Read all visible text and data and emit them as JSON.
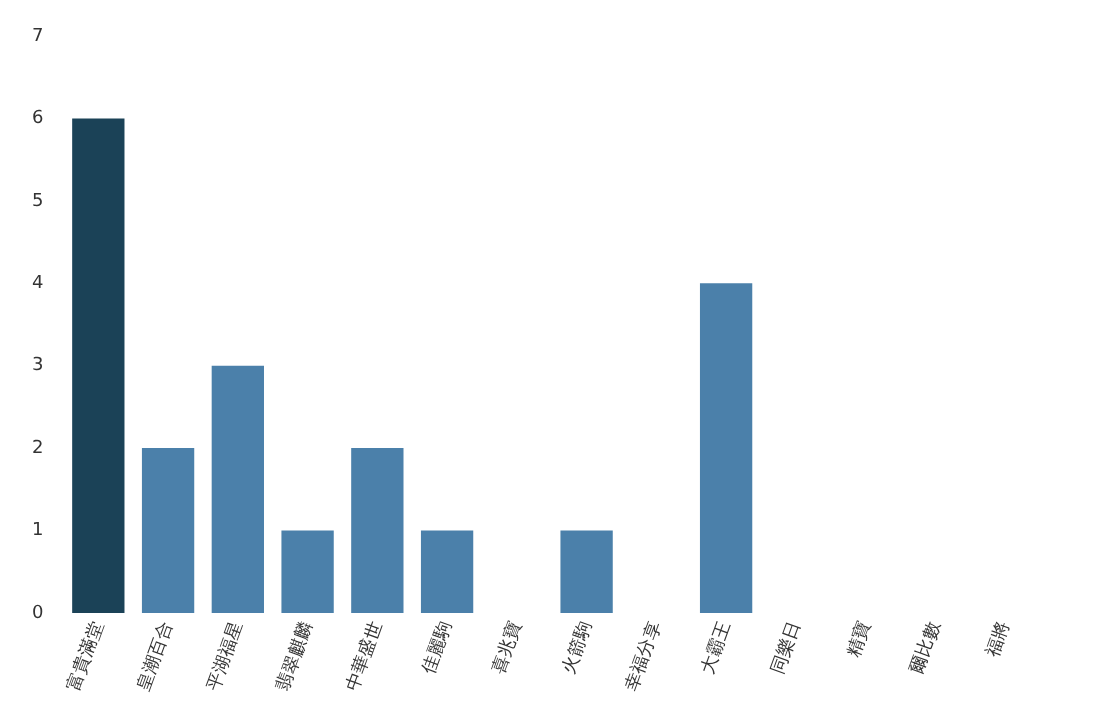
{
  "chart_data": {
    "type": "bar",
    "categories": [
      "富貴滿堂",
      "皇潮百合",
      "平湖福星",
      "翡翠麒麟",
      "中華盛世",
      "佳麗駒",
      "喜兆寶",
      "火箭駒",
      "幸福分享",
      "大霸王",
      "同樂日",
      "精寶",
      "爾比數",
      "福將"
    ],
    "values": [
      6,
      2,
      3,
      1,
      2,
      1,
      0,
      1,
      0,
      4,
      0,
      0,
      0,
      0
    ],
    "colors": [
      "#1b4257",
      "#4b80aa",
      "#4b80aa",
      "#4b80aa",
      "#4b80aa",
      "#4b80aa",
      "#4b80aa",
      "#4b80aa",
      "#4b80aa",
      "#4b80aa",
      "#4b80aa",
      "#4b80aa",
      "#4b80aa",
      "#4b80aa"
    ],
    "ylim": [
      0,
      7
    ],
    "yticks": [
      0,
      1,
      2,
      3,
      4,
      5,
      6,
      7
    ],
    "grid": false,
    "legend": false
  }
}
